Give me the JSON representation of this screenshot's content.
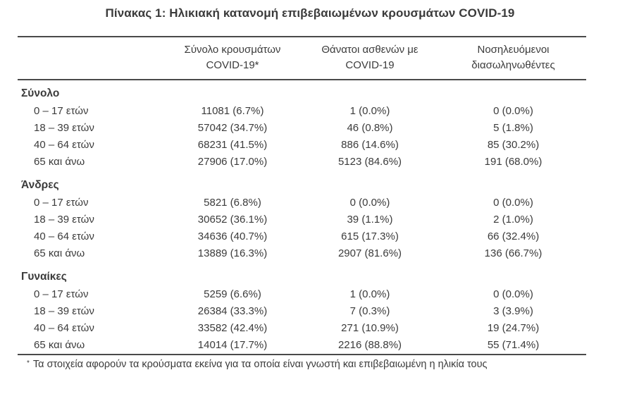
{
  "title": "Πίνακας 1: Ηλικιακή κατανομή επιβεβαιωμένων κρουσμάτων COVID-19",
  "table": {
    "columns": [
      {
        "line1": "Σύνολο κρουσμάτων",
        "line2": "COVID-19*"
      },
      {
        "line1": "Θάνατοι ασθενών με",
        "line2": "COVID-19"
      },
      {
        "line1": "Νοσηλευόμενοι",
        "line2": "διασωληνωθέντες"
      }
    ],
    "sections": [
      {
        "label": "Σύνολο",
        "rows": [
          {
            "label": "0 – 17 ετών",
            "cases": "11081 (6.7%)",
            "deaths": "1 (0.0%)",
            "intubated": "0 (0.0%)"
          },
          {
            "label": "18 – 39 ετών",
            "cases": "57042 (34.7%)",
            "deaths": "46 (0.8%)",
            "intubated": "5 (1.8%)"
          },
          {
            "label": "40 – 64 ετών",
            "cases": "68231 (41.5%)",
            "deaths": "886 (14.6%)",
            "intubated": "85 (30.2%)"
          },
          {
            "label": "65 και άνω",
            "cases": "27906 (17.0%)",
            "deaths": "5123 (84.6%)",
            "intubated": "191 (68.0%)"
          }
        ]
      },
      {
        "label": "Άνδρες",
        "rows": [
          {
            "label": "0 – 17 ετών",
            "cases": "5821 (6.8%)",
            "deaths": "0 (0.0%)",
            "intubated": "0 (0.0%)"
          },
          {
            "label": "18 – 39 ετών",
            "cases": "30652 (36.1%)",
            "deaths": "39 (1.1%)",
            "intubated": "2 (1.0%)"
          },
          {
            "label": "40 – 64 ετών",
            "cases": "34636 (40.7%)",
            "deaths": "615 (17.3%)",
            "intubated": "66 (32.4%)"
          },
          {
            "label": "65 και άνω",
            "cases": "13889 (16.3%)",
            "deaths": "2907 (81.6%)",
            "intubated": "136 (66.7%)"
          }
        ]
      },
      {
        "label": "Γυναίκες",
        "rows": [
          {
            "label": "0 – 17 ετών",
            "cases": "5259 (6.6%)",
            "deaths": "1 (0.0%)",
            "intubated": "0 (0.0%)"
          },
          {
            "label": "18 – 39 ετών",
            "cases": "26384 (33.3%)",
            "deaths": "7 (0.3%)",
            "intubated": "3 (3.9%)"
          },
          {
            "label": "40 – 64 ετών",
            "cases": "33582 (42.4%)",
            "deaths": "271 (10.9%)",
            "intubated": "19 (24.7%)"
          },
          {
            "label": "65 και άνω",
            "cases": "14014 (17.7%)",
            "deaths": "2216 (88.8%)",
            "intubated": "55 (71.4%)"
          }
        ]
      }
    ]
  },
  "footnote": {
    "marker": "*",
    "text": "Τα στοιχεία αφορούν τα κρούσματα εκείνα για τα οποία είναι γνωστή και επιβεβαιωμένη η ηλικία τους"
  },
  "colors": {
    "text": "#3b3b3b",
    "rule": "#4a4a4a",
    "background": "#ffffff"
  }
}
